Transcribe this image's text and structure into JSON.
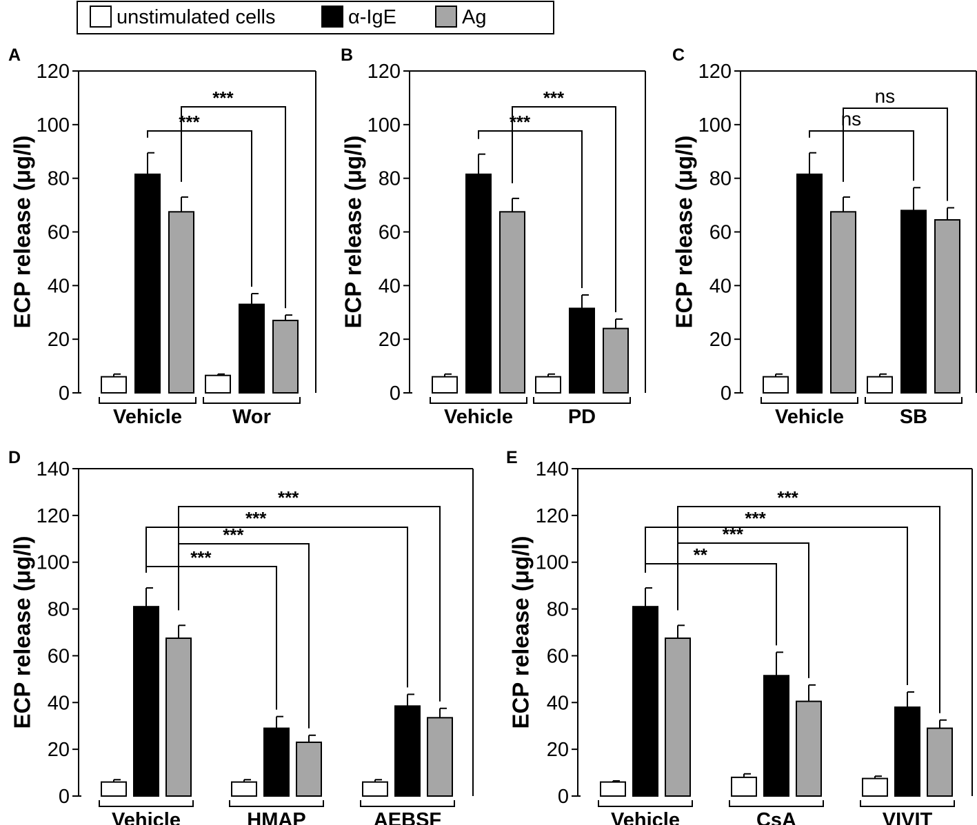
{
  "legend": {
    "items": [
      {
        "label": "unstimulated cells",
        "color": "#ffffff"
      },
      {
        "label": "α-IgE",
        "color": "#000000"
      },
      {
        "label": "Ag",
        "color": "#a6a6a6"
      }
    ]
  },
  "chart_data": [
    {
      "type": "bar",
      "panel_label": "A",
      "ylabel": "ECP release (μg/l)",
      "ylim": [
        0,
        120
      ],
      "yticks": [
        0,
        20,
        40,
        60,
        80,
        100,
        120
      ],
      "groups": [
        "Vehicle",
        "Wor"
      ],
      "series": [
        {
          "name": "unstimulated cells",
          "values": [
            6,
            6.5
          ],
          "errors": [
            1,
            0.5
          ]
        },
        {
          "name": "α-IgE",
          "values": [
            81.5,
            33
          ],
          "errors": [
            8,
            4
          ]
        },
        {
          "name": "Ag",
          "values": [
            67.5,
            27
          ],
          "errors": [
            5.5,
            2
          ]
        }
      ],
      "comparisons": [
        {
          "from": [
            0,
            1
          ],
          "to": [
            1,
            1
          ],
          "label": "***"
        },
        {
          "from": [
            0,
            2
          ],
          "to": [
            1,
            2
          ],
          "label": "***"
        }
      ]
    },
    {
      "type": "bar",
      "panel_label": "B",
      "ylabel": "ECP release (μg/l)",
      "ylim": [
        0,
        120
      ],
      "yticks": [
        0,
        20,
        40,
        60,
        80,
        100,
        120
      ],
      "groups": [
        "Vehicle",
        "PD"
      ],
      "series": [
        {
          "name": "unstimulated cells",
          "values": [
            6,
            6
          ],
          "errors": [
            1,
            1
          ]
        },
        {
          "name": "α-IgE",
          "values": [
            81.5,
            31.5
          ],
          "errors": [
            7.5,
            5
          ]
        },
        {
          "name": "Ag",
          "values": [
            67.5,
            24
          ],
          "errors": [
            5,
            3.5
          ]
        }
      ],
      "comparisons": [
        {
          "from": [
            0,
            1
          ],
          "to": [
            1,
            1
          ],
          "label": "***"
        },
        {
          "from": [
            0,
            2
          ],
          "to": [
            1,
            2
          ],
          "label": "***"
        }
      ]
    },
    {
      "type": "bar",
      "panel_label": "C",
      "ylabel": "ECP release (μg/l)",
      "ylim": [
        0,
        120
      ],
      "yticks": [
        0,
        20,
        40,
        60,
        80,
        100,
        120
      ],
      "groups": [
        "Vehicle",
        "SB"
      ],
      "series": [
        {
          "name": "unstimulated cells",
          "values": [
            6,
            6
          ],
          "errors": [
            1,
            1
          ]
        },
        {
          "name": "α-IgE",
          "values": [
            81.5,
            68
          ],
          "errors": [
            8,
            8.5
          ]
        },
        {
          "name": "Ag",
          "values": [
            67.5,
            64.5
          ],
          "errors": [
            5.5,
            4.5
          ]
        }
      ],
      "comparisons": [
        {
          "from": [
            0,
            1
          ],
          "to": [
            1,
            1
          ],
          "label": "ns"
        },
        {
          "from": [
            0,
            2
          ],
          "to": [
            1,
            2
          ],
          "label": "ns"
        }
      ]
    },
    {
      "type": "bar",
      "panel_label": "D",
      "ylabel": "ECP release (μg/l)",
      "ylim": [
        0,
        140
      ],
      "yticks": [
        0,
        20,
        40,
        60,
        80,
        100,
        120,
        140
      ],
      "groups": [
        "Vehicle",
        "HMAP",
        "AEBSF"
      ],
      "series": [
        {
          "name": "unstimulated cells",
          "values": [
            6,
            6,
            6
          ],
          "errors": [
            1,
            1,
            1
          ]
        },
        {
          "name": "α-IgE",
          "values": [
            81,
            29,
            38.5
          ],
          "errors": [
            8,
            5,
            5
          ]
        },
        {
          "name": "Ag",
          "values": [
            67.5,
            23,
            33.5
          ],
          "errors": [
            5.5,
            3,
            4
          ]
        }
      ],
      "comparisons": [
        {
          "from": [
            0,
            1
          ],
          "to": [
            1,
            1
          ],
          "label": "***"
        },
        {
          "from": [
            0,
            2
          ],
          "to": [
            1,
            2
          ],
          "label": "***"
        },
        {
          "from": [
            0,
            1
          ],
          "to": [
            2,
            1
          ],
          "label": "***"
        },
        {
          "from": [
            0,
            2
          ],
          "to": [
            2,
            2
          ],
          "label": "***"
        }
      ]
    },
    {
      "type": "bar",
      "panel_label": "E",
      "ylabel": "ECP release (μg/l)",
      "ylim": [
        0,
        140
      ],
      "yticks": [
        0,
        20,
        40,
        60,
        80,
        100,
        120,
        140
      ],
      "groups": [
        "Vehicle",
        "CsA",
        "VIVIT"
      ],
      "series": [
        {
          "name": "unstimulated cells",
          "values": [
            6,
            8,
            7.5
          ],
          "errors": [
            0.5,
            1.5,
            1
          ]
        },
        {
          "name": "α-IgE",
          "values": [
            81,
            51.5,
            38
          ],
          "errors": [
            8,
            10,
            6.5
          ]
        },
        {
          "name": "Ag",
          "values": [
            67.5,
            40.5,
            29
          ],
          "errors": [
            5.5,
            7,
            3.5
          ]
        }
      ],
      "comparisons": [
        {
          "from": [
            0,
            1
          ],
          "to": [
            1,
            1
          ],
          "label": "**"
        },
        {
          "from": [
            0,
            2
          ],
          "to": [
            1,
            2
          ],
          "label": "***"
        },
        {
          "from": [
            0,
            1
          ],
          "to": [
            2,
            1
          ],
          "label": "***"
        },
        {
          "from": [
            0,
            2
          ],
          "to": [
            2,
            2
          ],
          "label": "***"
        }
      ]
    }
  ]
}
